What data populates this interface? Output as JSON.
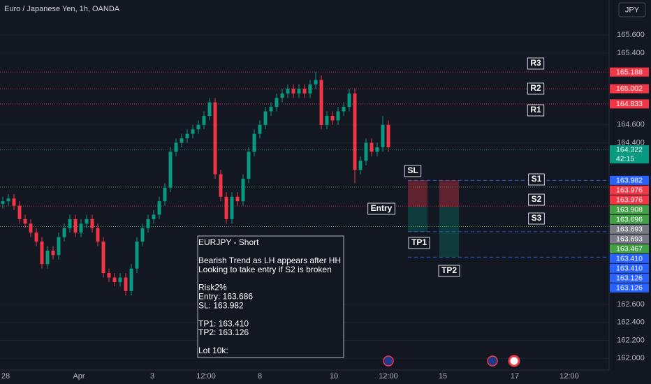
{
  "chart_data": {
    "type": "candlestick",
    "title": "Euro / Japanese Yen, 1h, OANDA",
    "currency": "JPY",
    "ylim": [
      161.87,
      165.99
    ],
    "grid": true,
    "yticks": [
      {
        "value": 165.6,
        "label": "165.600"
      },
      {
        "value": 165.4,
        "label": "165.400"
      },
      {
        "value": 164.6,
        "label": "164.600"
      },
      {
        "value": 164.4,
        "label": "164.400"
      },
      {
        "value": 162.6,
        "label": "162.600"
      },
      {
        "value": 162.4,
        "label": "162.400"
      },
      {
        "value": 162.2,
        "label": "162.200"
      },
      {
        "value": 162.0,
        "label": "162.000"
      }
    ],
    "x_labels": [
      "28",
      "Apr",
      "3",
      "12:00",
      "8",
      "10",
      "12:00",
      "15",
      "17",
      "12:00"
    ],
    "up_color": "#089981",
    "down_color": "#f23645",
    "open": [
      163.72,
      163.75,
      163.78,
      163.7,
      163.55,
      163.5,
      163.4,
      163.3,
      163.05,
      163.2,
      163.15,
      163.35,
      163.45,
      163.55,
      163.4,
      163.5,
      163.55,
      163.45,
      163.3,
      162.95,
      162.9,
      162.85,
      162.9,
      162.75,
      163.0,
      163.3,
      163.45,
      163.55,
      163.6,
      163.75,
      163.9,
      164.3,
      164.4,
      164.45,
      164.5,
      164.55,
      164.6,
      164.7,
      164.85,
      164.05,
      163.8,
      163.55,
      163.8,
      163.75,
      164.0,
      164.3,
      164.5,
      164.6,
      164.75,
      164.8,
      164.9,
      164.95,
      165.0,
      164.95,
      165.0,
      164.95,
      165.05,
      165.1,
      164.6,
      164.7,
      164.65,
      164.75,
      164.8,
      164.95,
      164.1,
      164.2,
      164.4,
      164.3,
      164.35,
      164.6
    ],
    "high": [
      163.8,
      163.83,
      163.83,
      163.75,
      163.6,
      163.55,
      163.45,
      163.35,
      163.25,
      163.25,
      163.4,
      163.5,
      163.6,
      163.6,
      163.55,
      163.6,
      163.6,
      163.5,
      163.35,
      163.0,
      162.95,
      162.95,
      162.95,
      163.05,
      163.35,
      163.5,
      163.6,
      163.65,
      163.8,
      163.95,
      164.35,
      164.45,
      164.5,
      164.55,
      164.6,
      164.65,
      164.75,
      164.9,
      164.9,
      164.1,
      163.85,
      163.85,
      163.85,
      164.05,
      164.35,
      164.55,
      164.65,
      164.8,
      164.85,
      164.95,
      165.0,
      165.05,
      165.05,
      165.05,
      165.05,
      165.1,
      165.19,
      165.15,
      164.75,
      164.75,
      164.8,
      164.85,
      165.0,
      165.0,
      164.25,
      164.45,
      164.45,
      164.4,
      164.7,
      164.65
    ],
    "low": [
      163.67,
      163.7,
      163.65,
      163.5,
      163.45,
      163.35,
      163.25,
      163.0,
      163.0,
      163.1,
      163.1,
      163.3,
      163.4,
      163.35,
      163.35,
      163.45,
      163.4,
      163.25,
      162.9,
      162.85,
      162.8,
      162.8,
      162.7,
      162.7,
      162.95,
      163.25,
      163.4,
      163.5,
      163.55,
      163.7,
      163.85,
      164.25,
      164.35,
      164.4,
      164.45,
      164.5,
      164.55,
      164.65,
      164.0,
      163.75,
      163.5,
      163.5,
      163.7,
      163.7,
      163.95,
      164.25,
      164.45,
      164.55,
      164.7,
      164.75,
      164.85,
      164.9,
      164.9,
      164.9,
      164.9,
      164.9,
      165.0,
      164.55,
      164.55,
      164.6,
      164.6,
      164.7,
      164.75,
      163.95,
      164.05,
      164.15,
      164.25,
      164.25,
      164.3,
      164.3
    ],
    "close": [
      163.75,
      163.78,
      163.7,
      163.55,
      163.5,
      163.4,
      163.3,
      163.05,
      163.2,
      163.15,
      163.35,
      163.45,
      163.55,
      163.4,
      163.5,
      163.55,
      163.45,
      163.3,
      162.95,
      162.9,
      162.85,
      162.9,
      162.75,
      163.0,
      163.3,
      163.45,
      163.55,
      163.6,
      163.75,
      163.9,
      164.3,
      164.4,
      164.45,
      164.5,
      164.55,
      164.6,
      164.7,
      164.85,
      164.05,
      163.8,
      163.55,
      163.8,
      163.75,
      164.0,
      164.3,
      164.5,
      164.6,
      164.75,
      164.8,
      164.9,
      164.95,
      165.0,
      164.95,
      165.0,
      164.95,
      165.05,
      165.1,
      164.6,
      164.7,
      164.65,
      164.75,
      164.8,
      164.95,
      164.1,
      164.2,
      164.4,
      164.3,
      164.35,
      164.6,
      164.35
    ],
    "price_lines": [
      {
        "value": 165.188,
        "color": "#f23645",
        "style": "dotted"
      },
      {
        "value": 165.002,
        "color": "#f23645",
        "style": "dotted"
      },
      {
        "value": 164.833,
        "color": "#f23645",
        "style": "dotted"
      },
      {
        "value": 164.322,
        "color": "#089981",
        "style": "dotted"
      },
      {
        "value": 163.982,
        "color": "#2962ff",
        "style": "dashed"
      },
      {
        "value": 163.908,
        "color": "#4caf50",
        "style": "dotted"
      },
      {
        "value": 163.696,
        "color": "#f23645",
        "style": "dotted"
      },
      {
        "value": 163.467,
        "color": "#4caf50",
        "style": "dotted"
      },
      {
        "value": 163.41,
        "color": "#2962ff",
        "style": "dashed"
      },
      {
        "value": 163.126,
        "color": "#2962ff",
        "style": "dashed"
      }
    ],
    "price_tags": [
      {
        "value": 165.188,
        "label": "165.188",
        "color": "#f23645"
      },
      {
        "value": 165.002,
        "label": "165.002",
        "color": "#f23645"
      },
      {
        "value": 164.833,
        "label": "164.833",
        "color": "#f23645"
      },
      {
        "value": 164.322,
        "label": "164.322",
        "color": "#089981",
        "timer": "42:15"
      },
      {
        "value": 163.982,
        "label": "163.982",
        "color": "#2962ff"
      },
      {
        "value": 163.976,
        "label": "163.976",
        "color": "#f23645"
      },
      {
        "value": 163.976,
        "label": "163.976",
        "color": "#f23645"
      },
      {
        "value": 163.908,
        "label": "163.908",
        "color": "#43a047"
      },
      {
        "value": 163.696,
        "label": "163.696",
        "color": "#43a047"
      },
      {
        "value": 163.693,
        "label": "163.693",
        "color": "#787b86"
      },
      {
        "value": 163.693,
        "label": "163.693",
        "color": "#787b86"
      },
      {
        "value": 163.467,
        "label": "163.467",
        "color": "#43a047"
      },
      {
        "value": 163.41,
        "label": "163.410",
        "color": "#2962ff"
      },
      {
        "value": 163.41,
        "label": "163.410",
        "color": "#2962ff"
      },
      {
        "value": 163.126,
        "label": "163.126",
        "color": "#2962ff"
      },
      {
        "value": 163.126,
        "label": "163.126",
        "color": "#2962ff"
      }
    ],
    "annotations": [
      "R3",
      "R2",
      "R1",
      "S1",
      "S2",
      "S3",
      "SL",
      "Entry",
      "TP1",
      "TP2"
    ],
    "positions": [
      {
        "entry": 163.686,
        "stop": 163.982,
        "target": 163.41
      },
      {
        "entry": 163.686,
        "stop": 163.982,
        "target": 163.126
      }
    ],
    "note": [
      [
        "EURJPY - Short"
      ],
      [
        "Bearish Trend as LH appears after HH",
        "Looking to take entry if S2 is broken"
      ],
      [
        "Risk2%",
        "Entry: 163.686",
        "SL: 163.982"
      ],
      [
        "TP1: 163.410",
        "TP2: 163.126"
      ],
      [
        "Lot 10k:"
      ]
    ]
  }
}
